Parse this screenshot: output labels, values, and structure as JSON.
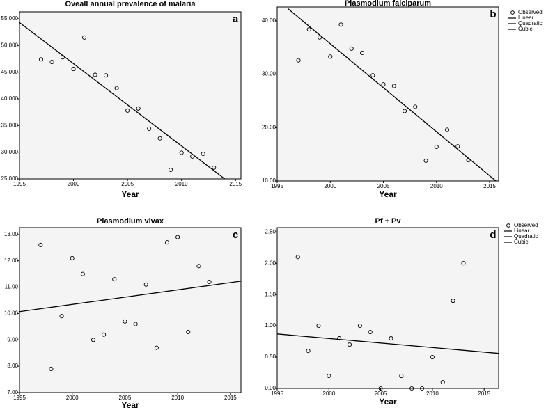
{
  "chart_data": [
    {
      "type": "scatter",
      "title": "Oveall annual prevalence of malaria",
      "panel_label": "a",
      "x_label": "Year",
      "x": [
        1997,
        1998,
        1999,
        2000,
        2001,
        2002,
        2003,
        2004,
        2005,
        2006,
        2007,
        2008,
        2009,
        2010,
        2011,
        2012,
        2013
      ],
      "series": [
        {
          "color": "#000000",
          "mode": "markers",
          "values": [
            47.4,
            46.9,
            47.8,
            45.6,
            51.5,
            44.5,
            44.4,
            42.0,
            37.8,
            38.2,
            34.4,
            32.6,
            26.7,
            29.9,
            29.2,
            29.7,
            27.1
          ]
        },
        {
          "color": "#000000",
          "mode": "line",
          "x": [
            1995,
            2014
          ],
          "values": [
            54.3,
            25.0
          ]
        }
      ],
      "xlim": [
        1995,
        2015.5
      ],
      "ylim": [
        25,
        56.3
      ],
      "xticks": [
        1995,
        2000,
        2005,
        2010,
        2015
      ],
      "yticks": [
        {
          "value": 25,
          "label": "25.000"
        },
        {
          "value": 30,
          "label": "30.000"
        },
        {
          "value": 35,
          "label": "35.000"
        },
        {
          "value": 40,
          "label": "40.000"
        },
        {
          "value": 45,
          "label": "45.000"
        },
        {
          "value": 50,
          "label": "50.000"
        },
        {
          "value": 55,
          "label": "55.000"
        }
      ]
    },
    {
      "type": "scatter",
      "title": "Plasmodium falciparum",
      "panel_label": "b",
      "x_label": "Year",
      "x": [
        1997,
        1998,
        1999,
        2000,
        2001,
        2002,
        2003,
        2004,
        2005,
        2006,
        2007,
        2008,
        2009,
        2010,
        2011,
        2012,
        2013
      ],
      "series": [
        {
          "name": "Observed",
          "color": "#000000",
          "mode": "markers",
          "values": [
            32.6,
            38.4,
            36.9,
            33.3,
            39.3,
            34.8,
            34.0,
            29.8,
            28.1,
            27.8,
            23.1,
            23.9,
            13.8,
            16.4,
            19.6,
            16.5,
            13.9
          ]
        },
        {
          "name": "Linear",
          "color": "#000000",
          "mode": "line",
          "x": [
            1996,
            2015.6
          ],
          "values": [
            42.3,
            10.0
          ]
        },
        {
          "name": "Quadratic",
          "color": "#000000",
          "mode": "line"
        },
        {
          "name": "Cubic",
          "color": "#000000",
          "mode": "line"
        }
      ],
      "xlim": [
        1995,
        2015.85
      ],
      "ylim": [
        10,
        42.6
      ],
      "xticks": [
        1995,
        2000,
        2005,
        2010,
        2015
      ],
      "yticks": [
        {
          "value": 10,
          "label": "10.00"
        },
        {
          "value": 20,
          "label": "20.00"
        },
        {
          "value": 30,
          "label": "30.00"
        },
        {
          "value": 40,
          "label": "40.00"
        }
      ]
    },
    {
      "type": "scatter",
      "title": "Plasmodium vivax",
      "panel_label": "c",
      "x_label": "Year",
      "x": [
        1997,
        1998,
        1999,
        2000,
        2001,
        2002,
        2003,
        2004,
        2005,
        2006,
        2007,
        2008,
        2009,
        2010,
        2011,
        2012,
        2013
      ],
      "series": [
        {
          "color": "#000000",
          "mode": "markers",
          "values": [
            12.6,
            7.9,
            9.9,
            12.1,
            11.5,
            9.0,
            9.2,
            11.3,
            9.7,
            9.6,
            11.1,
            8.7,
            12.7,
            12.9,
            9.3,
            11.8,
            11.2
          ]
        },
        {
          "color": "#000000",
          "mode": "line",
          "x": [
            1995,
            2016
          ],
          "values": [
            10.07,
            11.23
          ]
        }
      ],
      "xlim": [
        1995,
        2016
      ],
      "ylim": [
        7,
        13.26
      ],
      "xticks": [
        1995,
        2000,
        2005,
        2010,
        2015
      ],
      "yticks": [
        {
          "value": 7,
          "label": "7.00"
        },
        {
          "value": 8,
          "label": "8.00"
        },
        {
          "value": 9,
          "label": "9.00"
        },
        {
          "value": 10,
          "label": "10.00"
        },
        {
          "value": 11,
          "label": "11.00"
        },
        {
          "value": 12,
          "label": "12.00"
        },
        {
          "value": 13,
          "label": "13.00"
        }
      ]
    },
    {
      "type": "scatter",
      "title": "Pf + Pv",
      "panel_label": "d",
      "x_label": "Year",
      "x": [
        1997,
        1998,
        1999,
        2000,
        2001,
        2002,
        2003,
        2004,
        2005,
        2006,
        2007,
        2008,
        2009,
        2010,
        2011,
        2012,
        2013
      ],
      "series": [
        {
          "name": "Observed",
          "color": "#000000",
          "mode": "markers",
          "values": [
            2.1,
            0.6,
            1.0,
            0.2,
            0.8,
            0.7,
            1.0,
            0.9,
            0.0,
            0.8,
            0.2,
            0.0,
            0.0,
            0.5,
            0.1,
            1.4,
            2.0
          ]
        },
        {
          "name": "Linear",
          "color": "#000000",
          "mode": "line",
          "x": [
            1995,
            2016.4
          ],
          "values": [
            0.87,
            0.56
          ]
        },
        {
          "name": "Quadratic",
          "color": "#000000",
          "mode": "line"
        },
        {
          "name": "Cubic",
          "color": "#000000",
          "mode": "line"
        }
      ],
      "xlim": [
        1995,
        2016.4
      ],
      "ylim": [
        0,
        2.57
      ],
      "xticks": [
        1995,
        2000,
        2005,
        2010,
        2015
      ],
      "yticks": [
        {
          "value": 0,
          "label": "0.00"
        },
        {
          "value": 0.5,
          "label": "0.50"
        },
        {
          "value": 1,
          "label": "1.00"
        },
        {
          "value": 1.5,
          "label": "1.50"
        },
        {
          "value": 2,
          "label": "2.00"
        },
        {
          "value": 2.5,
          "label": "2.50"
        }
      ]
    }
  ]
}
